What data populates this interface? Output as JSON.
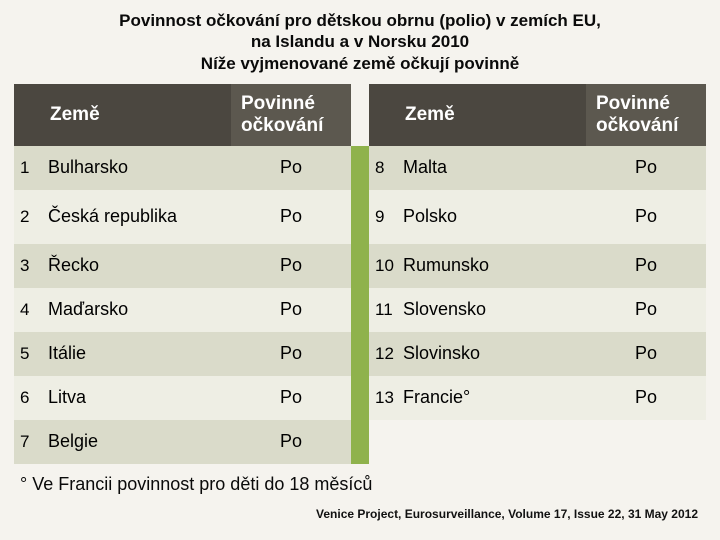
{
  "title_line1": "Povinnost očkování pro dětskou obrnu (polio) v zemích EU,",
  "title_line2": "na Islandu a v Norsku  2010",
  "title_line3": "Níže vyjmenované země očkují povinně",
  "headers": {
    "country": "Země",
    "vacc_line1": "Povinné",
    "vacc_line2": "očkování"
  },
  "left": [
    {
      "n": "1",
      "country": "Bulharsko",
      "v": "Po",
      "cls": "rowa",
      "h": "rowshort"
    },
    {
      "n": "2",
      "country": "Česká republika",
      "v": "Po",
      "cls": "rowb",
      "h": "rowtall"
    },
    {
      "n": "3",
      "country": "Řecko",
      "v": "Po",
      "cls": "rowa",
      "h": "rowshort"
    },
    {
      "n": "4",
      "country": "Maďarsko",
      "v": "Po",
      "cls": "rowb",
      "h": "rowshort"
    },
    {
      "n": "5",
      "country": "Itálie",
      "v": "Po",
      "cls": "rowa",
      "h": "rowshort"
    },
    {
      "n": "6",
      "country": "Litva",
      "v": "Po",
      "cls": "rowb",
      "h": "rowshort"
    },
    {
      "n": "7",
      "country": "Belgie",
      "v": "Po",
      "cls": "rowa",
      "h": "rowshort"
    }
  ],
  "right": [
    {
      "n": "8",
      "country": "Malta",
      "v": "Po",
      "cls": "rowa",
      "h": "rowshort"
    },
    {
      "n": "9",
      "country": "Polsko",
      "v": "Po",
      "cls": "rowb",
      "h": "rowtall"
    },
    {
      "n": "10",
      "country": "Rumunsko",
      "v": "Po",
      "cls": "rowa",
      "h": "rowshort"
    },
    {
      "n": "11",
      "country": "Slovensko",
      "v": "Po",
      "cls": "rowb",
      "h": "rowshort"
    },
    {
      "n": "12",
      "country": "Slovinsko",
      "v": "Po",
      "cls": "rowa",
      "h": "rowshort"
    },
    {
      "n": "13",
      "country": "Francie°",
      "v": "Po",
      "cls": "rowb",
      "h": "rowshort"
    }
  ],
  "footnote": "° Ve Francii povinnost pro děti do 18 měsíců",
  "source": "Venice Project, Eurosurveillance, Volume 17, Issue 22, 31 May 2012",
  "colors": {
    "slide_bg": "#f5f3ee",
    "row_alt1": "#dadbca",
    "row_alt2": "#eeeee4",
    "header_bg1": "#4b4740",
    "header_bg2": "#5c584f",
    "green": "#8fb24c"
  }
}
